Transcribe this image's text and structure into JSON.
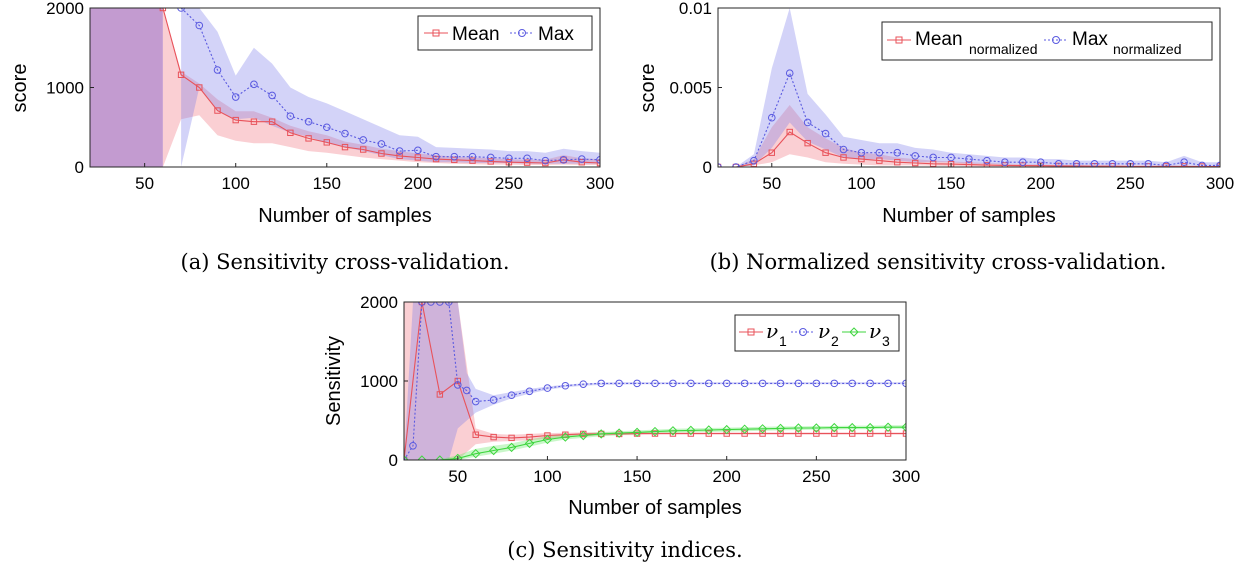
{
  "chart_data": [
    {
      "id": "a",
      "type": "line",
      "caption": "(a) Sensitivity cross-validation.",
      "xlabel": "Number of samples",
      "ylabel": "score",
      "xlim": [
        20,
        300
      ],
      "ylim": [
        0,
        2000
      ],
      "xticks": [
        50,
        100,
        150,
        200,
        250,
        300
      ],
      "yticks": [
        0,
        1000,
        2000
      ],
      "ytick_labels": [
        "0",
        "1000",
        "2000"
      ],
      "legend_position": "top-right",
      "series": [
        {
          "name": "Mean",
          "color": "#e8525a",
          "dash": "solid",
          "marker": "square",
          "x": [
            60,
            70,
            80,
            90,
            100,
            110,
            120,
            130,
            140,
            150,
            160,
            170,
            180,
            190,
            200,
            210,
            220,
            230,
            240,
            250,
            260,
            270,
            280,
            290,
            300
          ],
          "y": [
            2000,
            1160,
            1000,
            710,
            590,
            570,
            570,
            430,
            360,
            310,
            250,
            220,
            170,
            140,
            120,
            100,
            90,
            80,
            70,
            60,
            55,
            50,
            90,
            60,
            50
          ],
          "band_low": [
            0,
            600,
            650,
            400,
            330,
            300,
            300,
            250,
            200,
            180,
            150,
            120,
            100,
            80,
            60,
            50,
            40,
            35,
            30,
            30,
            25,
            25,
            30,
            25,
            25
          ],
          "band_high": [
            2000,
            1200,
            1050,
            850,
            700,
            700,
            620,
            520,
            450,
            400,
            320,
            280,
            230,
            200,
            170,
            150,
            130,
            120,
            110,
            100,
            90,
            90,
            150,
            110,
            100
          ]
        },
        {
          "name": "Max",
          "color": "#5a5ae0",
          "dash": "dotted",
          "marker": "circle",
          "x": [
            70,
            80,
            90,
            100,
            110,
            120,
            130,
            140,
            150,
            160,
            170,
            180,
            190,
            200,
            210,
            220,
            230,
            240,
            250,
            260,
            270,
            280,
            290,
            300
          ],
          "y": [
            2000,
            1780,
            1220,
            880,
            1040,
            900,
            640,
            570,
            500,
            420,
            340,
            290,
            200,
            210,
            130,
            130,
            130,
            120,
            110,
            110,
            80,
            90,
            100,
            90
          ],
          "band_low": [
            0,
            1000,
            700,
            600,
            620,
            520,
            430,
            380,
            300,
            250,
            200,
            150,
            100,
            80,
            60,
            60,
            50,
            50,
            50,
            40,
            40,
            40,
            40,
            40
          ],
          "band_high": [
            2000,
            2000,
            1700,
            1150,
            1500,
            1300,
            1000,
            880,
            800,
            700,
            600,
            500,
            400,
            380,
            250,
            240,
            230,
            220,
            200,
            200,
            180,
            230,
            200,
            180
          ]
        }
      ],
      "fill_region": {
        "name": "Mean",
        "x_from": 20,
        "x_to": 60,
        "color": "#b88ac8"
      }
    },
    {
      "id": "b",
      "type": "line",
      "caption": "(b) Normalized sensitivity cross-validation.",
      "xlabel": "Number of samples",
      "ylabel": "score",
      "xlim": [
        20,
        300
      ],
      "ylim": [
        0,
        0.01
      ],
      "xticks": [
        50,
        100,
        150,
        200,
        250,
        300
      ],
      "yticks": [
        0,
        0.005,
        0.01
      ],
      "ytick_labels": [
        "0",
        "0.005",
        "0.01"
      ],
      "legend_position": "top-right",
      "series": [
        {
          "name": "Mean",
          "name_sub": "normalized",
          "color": "#e8525a",
          "dash": "solid",
          "marker": "square",
          "x": [
            20,
            30,
            40,
            50,
            60,
            70,
            80,
            90,
            100,
            110,
            120,
            130,
            140,
            150,
            160,
            170,
            180,
            190,
            200,
            210,
            220,
            230,
            240,
            250,
            260,
            270,
            280,
            290,
            300
          ],
          "y": [
            0,
            0,
            0.0002,
            0.0009,
            0.0022,
            0.0015,
            0.0009,
            0.0006,
            0.0005,
            0.0004,
            0.0003,
            0.00025,
            0.0002,
            0.00018,
            0.00015,
            0.00012,
            0.0001,
            9e-05,
            8e-05,
            7e-05,
            6e-05,
            5e-05,
            5e-05,
            4e-05,
            4e-05,
            4e-05,
            4e-05,
            3e-05,
            3e-05
          ],
          "band_low": [
            0,
            0,
            0.0001,
            0.0003,
            0.0008,
            0.0006,
            0.0003,
            0.0002,
            0.00015,
            0.0001,
            0.0001,
            0.0001,
            8e-05,
            6e-05,
            5e-05,
            4e-05,
            3e-05,
            3e-05,
            2e-05,
            2e-05,
            2e-05,
            2e-05,
            2e-05,
            2e-05,
            1e-05,
            1e-05,
            1e-05,
            1e-05,
            1e-05
          ],
          "band_high": [
            0,
            0,
            0.0005,
            0.0025,
            0.0039,
            0.0025,
            0.0018,
            0.0012,
            0.0009,
            0.0008,
            0.0006,
            0.0005,
            0.0004,
            0.00035,
            0.0003,
            0.00025,
            0.0002,
            0.00018,
            0.00015,
            0.00013,
            0.00012,
            0.0001,
            0.0001,
            9e-05,
            8e-05,
            8e-05,
            8e-05,
            7e-05,
            7e-05
          ]
        },
        {
          "name": "Max",
          "name_sub": "normalized",
          "color": "#5a5ae0",
          "dash": "dotted",
          "marker": "circle",
          "x": [
            20,
            30,
            40,
            50,
            60,
            70,
            80,
            90,
            100,
            110,
            120,
            130,
            140,
            150,
            160,
            170,
            180,
            190,
            200,
            210,
            220,
            230,
            240,
            250,
            260,
            270,
            280,
            290,
            300
          ],
          "y": [
            0,
            0,
            0.0004,
            0.0031,
            0.0059,
            0.0028,
            0.0021,
            0.0011,
            0.0009,
            0.0009,
            0.0009,
            0.0007,
            0.0006,
            0.0006,
            0.0005,
            0.0004,
            0.0003,
            0.0003,
            0.0003,
            0.0002,
            0.0002,
            0.0002,
            0.0002,
            0.0002,
            0.0002,
            0.0001,
            0.0003,
            0.0001,
            0.0001
          ],
          "band_low": [
            0,
            0,
            0.0001,
            0.0012,
            0.0028,
            0.0016,
            0.0011,
            0.0006,
            0.0005,
            0.0005,
            0.0004,
            0.0003,
            0.0003,
            0.0003,
            0.0002,
            0.0002,
            0.00015,
            0.00015,
            0.00012,
            0.0001,
            0.0001,
            0.0001,
            0.0001,
            0.0001,
            0.0001,
            5e-05,
            0.0001,
            5e-05,
            5e-05
          ],
          "band_high": [
            0,
            0,
            0.0008,
            0.0062,
            0.0101,
            0.0046,
            0.0033,
            0.0019,
            0.0017,
            0.0015,
            0.0015,
            0.0012,
            0.0011,
            0.0009,
            0.0008,
            0.0007,
            0.0006,
            0.0006,
            0.0005,
            0.0005,
            0.0004,
            0.0004,
            0.0004,
            0.0004,
            0.0004,
            0.0003,
            0.0007,
            0.0003,
            0.0003
          ]
        }
      ]
    },
    {
      "id": "c",
      "type": "line",
      "caption": "(c) Sensitivity indices.",
      "xlabel": "Number of samples",
      "ylabel": "Sensitivity",
      "xlim": [
        20,
        300
      ],
      "ylim": [
        0,
        2000
      ],
      "xticks": [
        50,
        100,
        150,
        200,
        250,
        300
      ],
      "yticks": [
        0,
        1000,
        2000
      ],
      "ytick_labels": [
        "0",
        "1000",
        "2000"
      ],
      "legend_position": "top-right",
      "series": [
        {
          "name": "ν",
          "name_sub": "1",
          "color": "#e8525a",
          "dash": "solid",
          "marker": "square",
          "x": [
            20,
            30,
            40,
            50,
            60,
            70,
            80,
            90,
            100,
            110,
            120,
            130,
            140,
            150,
            160,
            170,
            180,
            190,
            200,
            210,
            220,
            230,
            240,
            250,
            260,
            270,
            280,
            290,
            300
          ],
          "y": [
            0,
            2000,
            830,
            1000,
            320,
            290,
            280,
            290,
            310,
            320,
            330,
            330,
            330,
            335,
            335,
            335,
            335,
            335,
            335,
            335,
            335,
            335,
            335,
            335,
            335,
            335,
            335,
            335,
            335
          ],
          "band_low": [
            0,
            0,
            0,
            0,
            200,
            230,
            240,
            250,
            270,
            290,
            300,
            310,
            315,
            315,
            320,
            320,
            320,
            320,
            320,
            320,
            320,
            320,
            320,
            320,
            320,
            320,
            320,
            320,
            320
          ],
          "band_high": [
            2000,
            2000,
            2000,
            2000,
            400,
            330,
            320,
            330,
            340,
            345,
            350,
            350,
            350,
            350,
            350,
            350,
            350,
            350,
            350,
            350,
            350,
            350,
            350,
            350,
            350,
            350,
            350,
            350,
            350
          ]
        },
        {
          "name": "ν",
          "name_sub": "2",
          "color": "#5a5ae0",
          "dash": "dotted",
          "marker": "circle",
          "x": [
            20,
            25,
            30,
            35,
            40,
            45,
            50,
            55,
            60,
            70,
            80,
            90,
            100,
            110,
            120,
            130,
            140,
            150,
            160,
            170,
            180,
            190,
            200,
            210,
            220,
            230,
            240,
            250,
            260,
            270,
            280,
            290,
            300
          ],
          "y": [
            0,
            180,
            2000,
            2000,
            2000,
            2000,
            950,
            880,
            740,
            760,
            820,
            870,
            910,
            940,
            960,
            970,
            970,
            970,
            970,
            970,
            970,
            970,
            970,
            970,
            970,
            970,
            970,
            970,
            970,
            970,
            970,
            970,
            970
          ],
          "band_low": [
            0,
            0,
            0,
            0,
            0,
            0,
            400,
            500,
            600,
            700,
            780,
            840,
            890,
            920,
            940,
            950,
            955,
            960,
            960,
            960,
            960,
            960,
            960,
            960,
            960,
            960,
            960,
            960,
            960,
            960,
            960,
            960,
            960
          ],
          "band_high": [
            0,
            2000,
            2000,
            2000,
            2000,
            2000,
            2000,
            1100,
            900,
            820,
            860,
            900,
            930,
            955,
            970,
            980,
            985,
            985,
            985,
            985,
            985,
            985,
            985,
            985,
            985,
            985,
            985,
            985,
            985,
            985,
            985,
            985,
            985
          ]
        },
        {
          "name": "ν",
          "name_sub": "3",
          "color": "#3fd63f",
          "dash": "solid",
          "marker": "diamond",
          "x": [
            20,
            30,
            40,
            50,
            60,
            70,
            80,
            90,
            100,
            110,
            120,
            130,
            140,
            150,
            160,
            170,
            180,
            190,
            200,
            210,
            220,
            230,
            240,
            250,
            260,
            270,
            280,
            290,
            300
          ],
          "y": [
            0,
            0,
            0,
            20,
            80,
            120,
            160,
            210,
            260,
            290,
            310,
            330,
            340,
            350,
            360,
            370,
            375,
            380,
            385,
            390,
            395,
            400,
            405,
            405,
            410,
            410,
            410,
            415,
            415
          ],
          "band_low": [
            0,
            0,
            0,
            0,
            40,
            80,
            120,
            170,
            220,
            260,
            280,
            300,
            315,
            325,
            335,
            345,
            350,
            355,
            360,
            365,
            370,
            375,
            380,
            385,
            385,
            390,
            390,
            395,
            395
          ],
          "band_high": [
            0,
            0,
            10,
            60,
            140,
            180,
            210,
            260,
            300,
            320,
            340,
            355,
            365,
            375,
            385,
            395,
            400,
            405,
            410,
            415,
            420,
            425,
            425,
            430,
            430,
            435,
            435,
            440,
            440
          ]
        }
      ]
    }
  ]
}
